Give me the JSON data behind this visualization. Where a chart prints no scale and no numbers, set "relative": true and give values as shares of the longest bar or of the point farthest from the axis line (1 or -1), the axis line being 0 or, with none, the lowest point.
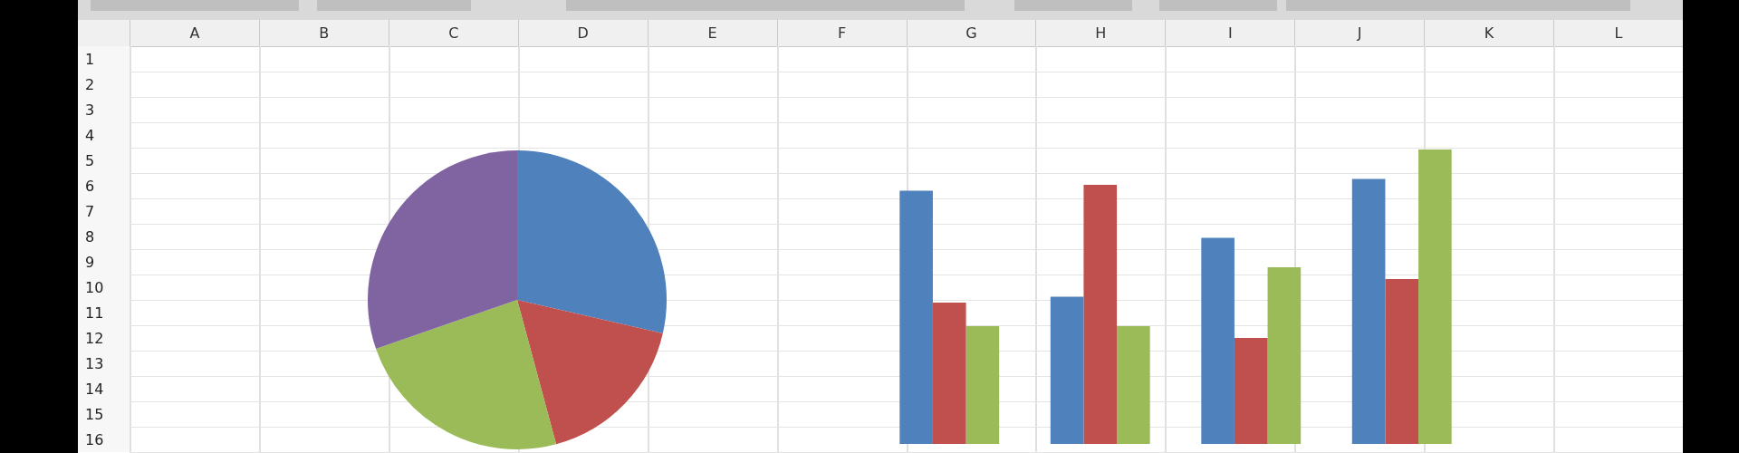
{
  "chart_data": [
    {
      "type": "heatmap",
      "categories": [
        "A",
        "B",
        "C",
        "D",
        "E",
        "F",
        "G",
        "H",
        "I",
        "J",
        "K",
        "L"
      ],
      "y_categories": [
        "1",
        "2",
        "3",
        "4",
        "5",
        "6",
        "7",
        "8",
        "9",
        "10",
        "11",
        "12",
        "13",
        "14",
        "15",
        "16"
      ],
      "cells": [
        [
          null,
          null,
          null,
          null,
          null,
          null,
          null,
          null,
          null,
          null,
          null,
          null
        ],
        [
          null,
          null,
          null,
          null,
          null,
          null,
          null,
          null,
          null,
          null,
          null,
          null
        ],
        [
          null,
          null,
          null,
          null,
          null,
          null,
          null,
          null,
          null,
          null,
          null,
          null
        ],
        [
          null,
          null,
          null,
          null,
          null,
          null,
          null,
          null,
          null,
          null,
          null,
          null
        ],
        [
          null,
          null,
          null,
          null,
          null,
          null,
          null,
          null,
          null,
          null,
          null,
          null
        ],
        [
          null,
          null,
          null,
          null,
          null,
          null,
          null,
          null,
          null,
          null,
          null,
          null
        ],
        [
          null,
          null,
          null,
          null,
          null,
          null,
          null,
          null,
          null,
          null,
          null,
          null
        ],
        [
          null,
          null,
          null,
          null,
          null,
          null,
          null,
          null,
          null,
          null,
          null,
          null
        ],
        [
          null,
          null,
          null,
          null,
          null,
          null,
          null,
          null,
          null,
          null,
          null,
          null
        ],
        [
          null,
          null,
          null,
          null,
          null,
          null,
          null,
          null,
          null,
          null,
          null,
          null
        ],
        [
          null,
          null,
          null,
          null,
          null,
          null,
          null,
          null,
          null,
          null,
          null,
          null
        ],
        [
          null,
          null,
          null,
          null,
          null,
          null,
          null,
          null,
          null,
          null,
          null,
          null
        ],
        [
          null,
          null,
          null,
          null,
          null,
          null,
          null,
          null,
          null,
          null,
          null,
          null
        ],
        [
          null,
          null,
          null,
          null,
          null,
          null,
          null,
          null,
          null,
          null,
          null,
          null
        ],
        [
          null,
          null,
          null,
          null,
          null,
          null,
          null,
          null,
          null,
          null,
          null,
          null
        ],
        [
          null,
          null,
          null,
          null,
          null,
          null,
          null,
          null,
          null,
          null,
          null,
          null
        ]
      ]
    },
    {
      "type": "pie",
      "categories": [
        null,
        null,
        null,
        null
      ],
      "values": [
        28.6,
        17.2,
        23.9,
        30.3
      ],
      "colors": [
        "#4f81bd",
        "#c0504d",
        "#9bbb59",
        "#8064a2"
      ]
    },
    {
      "type": "bar",
      "relative": true,
      "categories": [
        null,
        null,
        null,
        null
      ],
      "series": [
        {
          "color": "#4f81bd",
          "values": [
            0.86,
            0.5,
            0.7,
            0.9
          ]
        },
        {
          "color": "#c0504d",
          "values": [
            0.48,
            0.88,
            0.36,
            0.56
          ]
        },
        {
          "color": "#9bbb59",
          "values": [
            0.4,
            0.4,
            0.6,
            1
          ]
        }
      ]
    }
  ]
}
